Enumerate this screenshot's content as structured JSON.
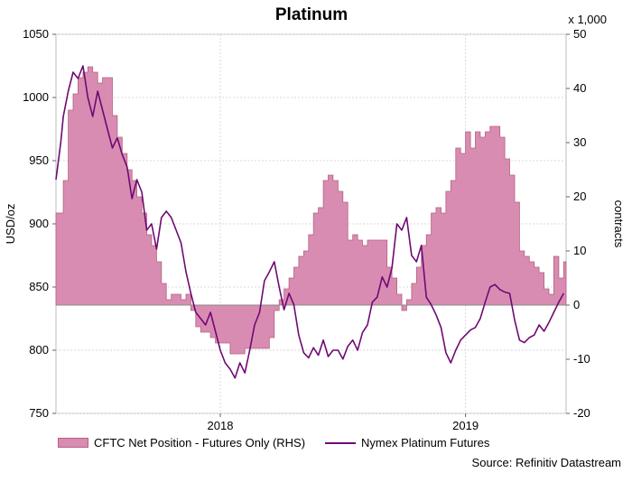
{
  "chart_data": {
    "type": "area+line",
    "title": "Platinum",
    "ylabel_left": "USD/oz",
    "ylabel_right": "contracts",
    "right_axis_multiplier": "x 1,000",
    "ylim_left": [
      750,
      1050
    ],
    "ylim_right": [
      -20,
      50
    ],
    "yticks_left": [
      "750",
      "800",
      "850",
      "900",
      "950",
      "1000",
      "1050"
    ],
    "yticks_right": [
      "-20",
      "-10",
      "0",
      "10",
      "20",
      "30",
      "40",
      "50"
    ],
    "xticks": [
      {
        "label": "2018",
        "date": 2018.0
      },
      {
        "label": "2019",
        "date": 2019.0
      }
    ],
    "xlim": [
      2017.33,
      2019.41
    ],
    "grid": true,
    "legend_position": "bottom",
    "series": [
      {
        "name": "CFTC Net Position - Futures Only (RHS)",
        "axis": "right",
        "kind": "area",
        "color": "#d98cb2",
        "edge_color": "#b5607f",
        "x": [
          2017.33,
          2017.35,
          2017.36,
          2017.38,
          2017.4,
          2017.42,
          2017.44,
          2017.46,
          2017.48,
          2017.5,
          2017.52,
          2017.54,
          2017.56,
          2017.58,
          2017.6,
          2017.62,
          2017.64,
          2017.66,
          2017.68,
          2017.7,
          2017.72,
          2017.74,
          2017.76,
          2017.78,
          2017.8,
          2017.82,
          2017.84,
          2017.86,
          2017.88,
          2017.9,
          2017.92,
          2017.94,
          2017.96,
          2017.98,
          2018.0,
          2018.02,
          2018.04,
          2018.06,
          2018.08,
          2018.1,
          2018.12,
          2018.14,
          2018.16,
          2018.18,
          2018.2,
          2018.22,
          2018.24,
          2018.26,
          2018.28,
          2018.3,
          2018.32,
          2018.34,
          2018.36,
          2018.38,
          2018.4,
          2018.42,
          2018.44,
          2018.46,
          2018.48,
          2018.5,
          2018.52,
          2018.54,
          2018.56,
          2018.58,
          2018.6,
          2018.62,
          2018.64,
          2018.66,
          2018.68,
          2018.7,
          2018.72,
          2018.74,
          2018.76,
          2018.78,
          2018.8,
          2018.82,
          2018.84,
          2018.86,
          2018.88,
          2018.9,
          2018.92,
          2018.94,
          2018.96,
          2018.98,
          2019.0,
          2019.02,
          2019.04,
          2019.06,
          2019.08,
          2019.1,
          2019.12,
          2019.14,
          2019.16,
          2019.18,
          2019.2,
          2019.22,
          2019.24,
          2019.26,
          2019.28,
          2019.3,
          2019.32,
          2019.34,
          2019.36,
          2019.38,
          2019.4
        ],
        "values": [
          17,
          17,
          23,
          36,
          39,
          42,
          43,
          44,
          43,
          41,
          42,
          42,
          35,
          31,
          28,
          25,
          23,
          20,
          17,
          13,
          11,
          8,
          4,
          1,
          2,
          2,
          1,
          2,
          -1,
          -4,
          -5,
          -5,
          -6,
          -7,
          -7,
          -7,
          -9,
          -9,
          -9,
          -8,
          -8,
          -8,
          -8,
          -8,
          -6,
          -1,
          1,
          3,
          5,
          7,
          9,
          10,
          13,
          17,
          18,
          23,
          24,
          23,
          21,
          19,
          12,
          13,
          12,
          11,
          12,
          12,
          12,
          12,
          7,
          5,
          2,
          -1,
          1,
          4,
          7,
          11,
          13,
          17,
          18,
          17,
          21,
          23,
          29,
          28,
          32,
          29,
          32,
          31,
          32,
          33,
          33,
          31,
          27,
          24,
          19,
          10,
          9,
          8,
          7,
          6,
          3,
          2,
          9,
          5,
          8
        ]
      },
      {
        "name": "Nymex Platinum Futures",
        "axis": "left",
        "kind": "line",
        "color": "#6e0a73",
        "x": [
          2017.33,
          2017.35,
          2017.36,
          2017.38,
          2017.4,
          2017.42,
          2017.44,
          2017.46,
          2017.48,
          2017.5,
          2017.52,
          2017.54,
          2017.56,
          2017.58,
          2017.6,
          2017.62,
          2017.64,
          2017.66,
          2017.68,
          2017.7,
          2017.72,
          2017.74,
          2017.76,
          2017.78,
          2017.8,
          2017.82,
          2017.84,
          2017.86,
          2017.88,
          2017.9,
          2017.92,
          2017.94,
          2017.96,
          2017.98,
          2018.0,
          2018.02,
          2018.04,
          2018.06,
          2018.08,
          2018.1,
          2018.12,
          2018.14,
          2018.16,
          2018.18,
          2018.2,
          2018.22,
          2018.24,
          2018.26,
          2018.28,
          2018.3,
          2018.32,
          2018.34,
          2018.36,
          2018.38,
          2018.4,
          2018.42,
          2018.44,
          2018.46,
          2018.48,
          2018.5,
          2018.52,
          2018.54,
          2018.56,
          2018.58,
          2018.6,
          2018.62,
          2018.64,
          2018.66,
          2018.68,
          2018.7,
          2018.72,
          2018.74,
          2018.76,
          2018.78,
          2018.8,
          2018.82,
          2018.84,
          2018.86,
          2018.88,
          2018.9,
          2018.92,
          2018.94,
          2018.96,
          2018.98,
          2019.0,
          2019.02,
          2019.04,
          2019.06,
          2019.08,
          2019.1,
          2019.12,
          2019.14,
          2019.16,
          2019.18,
          2019.2,
          2019.22,
          2019.24,
          2019.26,
          2019.28,
          2019.3,
          2019.32,
          2019.34,
          2019.36,
          2019.38,
          2019.4
        ],
        "values": [
          935,
          965,
          985,
          1005,
          1020,
          1015,
          1025,
          1000,
          985,
          1005,
          990,
          975,
          960,
          968,
          955,
          945,
          920,
          935,
          925,
          895,
          900,
          880,
          905,
          910,
          905,
          895,
          885,
          862,
          845,
          830,
          825,
          820,
          830,
          815,
          800,
          790,
          785,
          778,
          790,
          782,
          800,
          820,
          830,
          855,
          862,
          870,
          850,
          832,
          845,
          836,
          812,
          798,
          794,
          802,
          796,
          808,
          795,
          800,
          800,
          793,
          803,
          808,
          800,
          814,
          820,
          838,
          842,
          858,
          850,
          865,
          900,
          895,
          905,
          875,
          870,
          883,
          842,
          836,
          828,
          818,
          798,
          790,
          800,
          808,
          812,
          816,
          818,
          825,
          838,
          850,
          852,
          848,
          846,
          845,
          824,
          808,
          806,
          810,
          812,
          820,
          815,
          822,
          830,
          838,
          845
        ]
      }
    ]
  },
  "legend": {
    "area_label": "CFTC Net Position - Futures Only (RHS)",
    "line_label": "Nymex Platinum Futures"
  },
  "source": "Source: Refinitiv Datastream"
}
